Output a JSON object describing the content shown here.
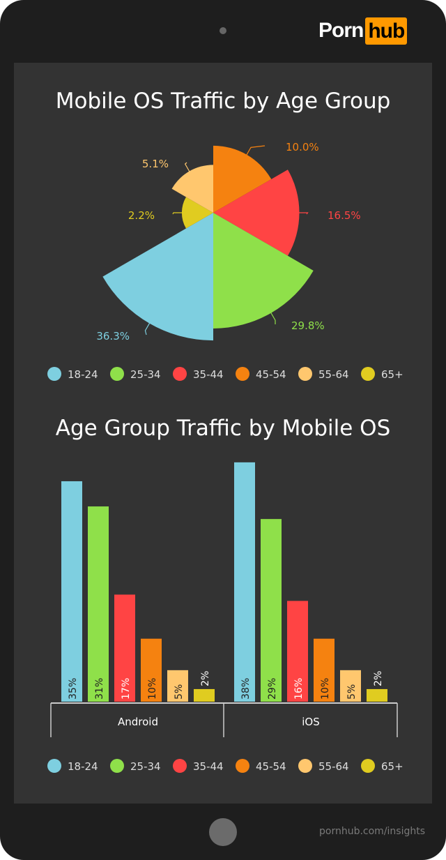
{
  "brand": {
    "logo_left": "Porn",
    "logo_right": "hub",
    "footer_url": "pornhub.com/insights"
  },
  "legend": [
    "18-24",
    "25-34",
    "35-44",
    "45-54",
    "55-64",
    "65+"
  ],
  "colors": {
    "18-24": "#7ecfe0",
    "25-34": "#8fe04a",
    "35-44": "#ff4444",
    "45-54": "#f58210",
    "55-64": "#ffc76e",
    "65+": "#e0cc20"
  },
  "chart_data": [
    {
      "type": "pie",
      "subtype": "polar-area",
      "title": "Mobile OS Traffic by Age Group",
      "slices": [
        {
          "label": "45-54",
          "value": 10.0,
          "text": "10.0%"
        },
        {
          "label": "35-44",
          "value": 16.5,
          "text": "16.5%"
        },
        {
          "label": "25-34",
          "value": 29.8,
          "text": "29.8%"
        },
        {
          "label": "18-24",
          "value": 36.3,
          "text": "36.3%"
        },
        {
          "label": "65+",
          "value": 2.2,
          "text": "2.2%"
        },
        {
          "label": "55-64",
          "value": 5.1,
          "text": "5.1%"
        }
      ],
      "legend_placement": "bottom"
    },
    {
      "type": "bar",
      "title": "Age Group Traffic by Mobile OS",
      "categories": [
        "Android",
        "iOS"
      ],
      "series": [
        {
          "name": "18-24",
          "values": [
            35,
            38
          ]
        },
        {
          "name": "25-34",
          "values": [
            31,
            29
          ]
        },
        {
          "name": "35-44",
          "values": [
            17,
            16
          ]
        },
        {
          "name": "45-54",
          "values": [
            10,
            10
          ]
        },
        {
          "name": "55-64",
          "values": [
            5,
            5
          ]
        },
        {
          "name": "65+",
          "values": [
            2,
            2
          ]
        }
      ],
      "unit": "%",
      "legend_placement": "bottom",
      "grid": false
    }
  ]
}
